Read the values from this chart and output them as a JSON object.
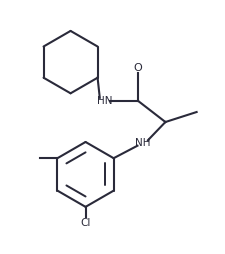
{
  "background_color": "#ffffff",
  "line_color": "#2a2a3a",
  "text_color": "#2a2a3a",
  "line_width": 1.5,
  "figsize": [
    2.26,
    2.54
  ],
  "dpi": 100,
  "xlim": [
    0,
    9
  ],
  "ylim": [
    0,
    9
  ]
}
